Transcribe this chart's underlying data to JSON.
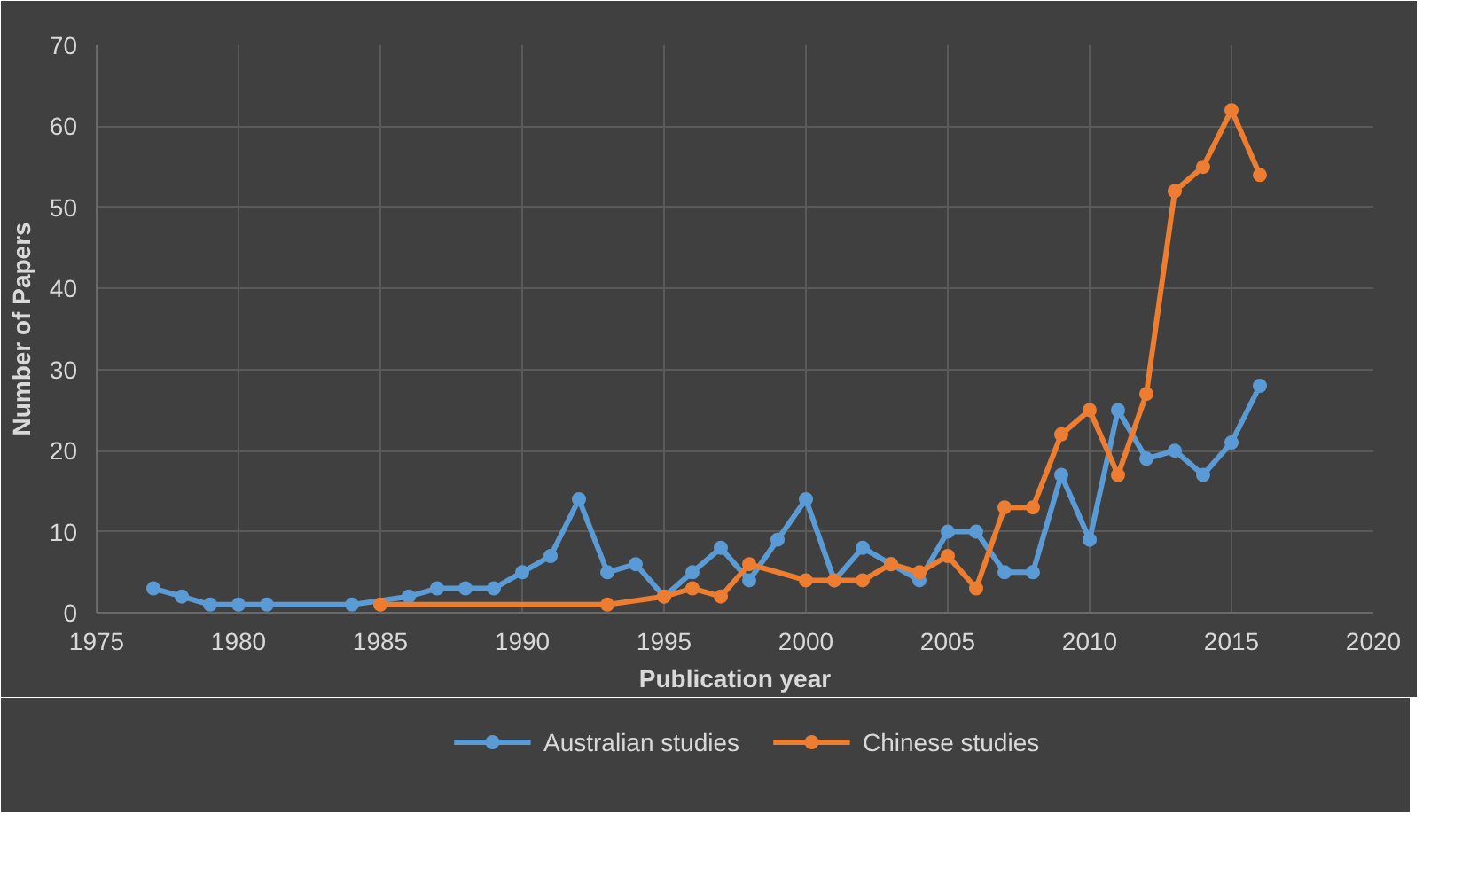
{
  "chart_data": {
    "type": "line",
    "xlabel": "Publication year",
    "ylabel": "Number of Papers",
    "xlim": [
      1975,
      2020
    ],
    "xticks": [
      1975,
      1980,
      1985,
      1990,
      1995,
      2000,
      2005,
      2010,
      2015,
      2020
    ],
    "ylim": [
      0,
      70
    ],
    "yticks": [
      0,
      10,
      20,
      30,
      40,
      50,
      60,
      70
    ],
    "grid": true,
    "legend": "bottom",
    "marker": "circle",
    "series": [
      {
        "name": "Australian studies",
        "color": "#5b9bd5",
        "x": [
          1977,
          1978,
          1979,
          1980,
          1981,
          1984,
          1986,
          1987,
          1988,
          1989,
          1990,
          1991,
          1992,
          1993,
          1994,
          1995,
          1996,
          1997,
          1998,
          1999,
          2000,
          2001,
          2002,
          2003,
          2004,
          2005,
          2006,
          2007,
          2008,
          2009,
          2010,
          2011,
          2012,
          2013,
          2014,
          2015,
          2016
        ],
        "values": [
          3,
          2,
          1,
          1,
          1,
          1,
          2,
          3,
          3,
          3,
          5,
          7,
          14,
          5,
          6,
          2,
          5,
          8,
          4,
          9,
          14,
          4,
          8,
          6,
          4,
          10,
          10,
          5,
          5,
          17,
          9,
          25,
          19,
          20,
          17,
          21,
          28
        ]
      },
      {
        "name": "Chinese studies",
        "color": "#ed7d31",
        "x": [
          1985,
          1993,
          1995,
          1996,
          1997,
          1998,
          2000,
          2001,
          2002,
          2003,
          2004,
          2005,
          2006,
          2007,
          2008,
          2009,
          2010,
          2011,
          2012,
          2013,
          2014,
          2015,
          2016
        ],
        "values": [
          1,
          1,
          2,
          3,
          2,
          6,
          4,
          4,
          4,
          6,
          5,
          7,
          3,
          13,
          13,
          22,
          25,
          17,
          27,
          52,
          55,
          62,
          54
        ]
      }
    ]
  }
}
